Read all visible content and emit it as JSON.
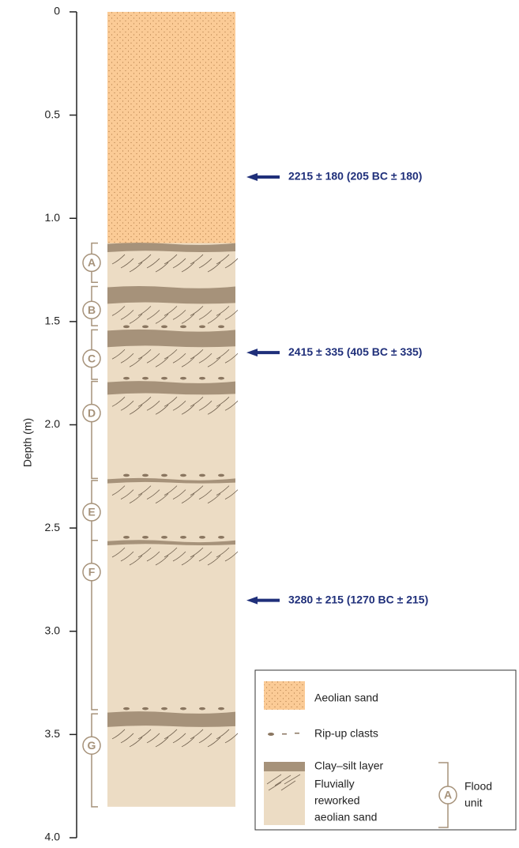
{
  "axis": {
    "label": "Depth (m)",
    "lim": [
      0,
      4
    ],
    "ticks": [
      0,
      0.5,
      {
        "value": 1,
        "label": "1.0"
      },
      1.5,
      {
        "value": 2,
        "label": "2.0"
      },
      2.5,
      {
        "value": 3,
        "label": "3.0"
      },
      3.5,
      {
        "value": 4,
        "label": "4.0"
      }
    ]
  },
  "column": {
    "bottom": 3.85,
    "sand_bottom": 1.12
  },
  "clay_layers": [
    {
      "top": 1.12,
      "bottom": 1.16
    },
    {
      "top": 1.33,
      "bottom": 1.41
    },
    {
      "top": 1.54,
      "bottom": 1.62
    },
    {
      "top": 1.79,
      "bottom": 1.85
    },
    {
      "top": 2.26,
      "bottom": 2.28
    },
    {
      "top": 2.56,
      "bottom": 2.58
    },
    {
      "top": 3.39,
      "bottom": 3.46
    }
  ],
  "flood_units": [
    {
      "label": "A",
      "top": 1.12,
      "bottom": 1.31
    },
    {
      "label": "B",
      "top": 1.33,
      "bottom": 1.52
    },
    {
      "label": "C",
      "top": 1.54,
      "bottom": 1.78
    },
    {
      "label": "D",
      "top": 1.79,
      "bottom": 2.26
    },
    {
      "label": "E",
      "top": 2.27,
      "bottom": 2.56
    },
    {
      "label": "F",
      "top": 2.56,
      "bottom": 3.38
    },
    {
      "label": "G",
      "top": 3.4,
      "bottom": 3.85
    }
  ],
  "dates": [
    {
      "depth": 0.8,
      "label": "2215 ± 180 (205 BC ± 180)"
    },
    {
      "depth": 1.65,
      "label": "2415 ± 335 (405 BC ± 335)"
    },
    {
      "depth": 2.85,
      "label": "3280 ± 215 (1270 BC ± 215)"
    }
  ],
  "legend": {
    "aeolian": "Aeolian sand",
    "clasts": "Rip-up clasts",
    "clay": "Clay–silt layer",
    "fluvial": [
      "Fluvially",
      "reworked",
      "aeolian sand"
    ],
    "unit_symbol": "A",
    "unit": [
      "Flood",
      "unit"
    ]
  }
}
